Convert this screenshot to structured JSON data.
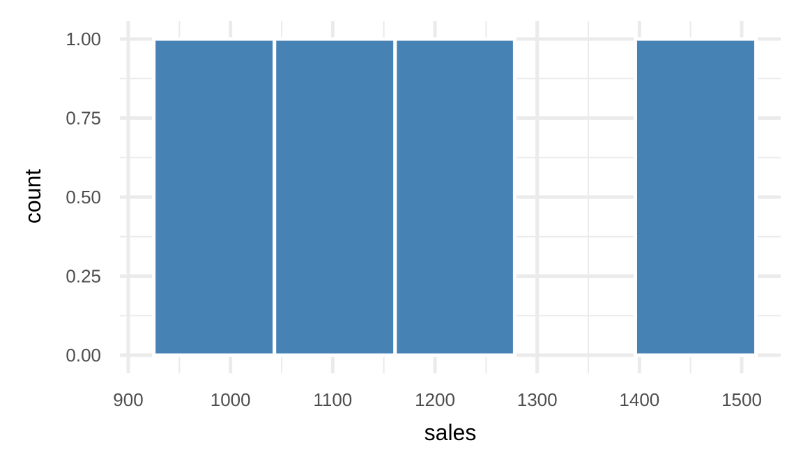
{
  "chart_data": {
    "type": "bar",
    "subtype": "histogram",
    "xlabel": "sales",
    "ylabel": "count",
    "xlim": [
      900,
      1520
    ],
    "ylim": [
      0,
      1.0
    ],
    "x_ticks": [
      900,
      1000,
      1100,
      1200,
      1300,
      1400,
      1500
    ],
    "x_tick_labels": [
      "900",
      "1000",
      "1100",
      "1200",
      "1300",
      "1400",
      "1500"
    ],
    "y_ticks": [
      0,
      0.25,
      0.5,
      0.75,
      1.0
    ],
    "y_tick_labels": [
      "0.00",
      "0.25",
      "0.50",
      "0.75",
      "1.00"
    ],
    "bins": [
      {
        "x_start": 925,
        "x_end": 1043,
        "count": 1
      },
      {
        "x_start": 1043,
        "x_end": 1161,
        "count": 1
      },
      {
        "x_start": 1161,
        "x_end": 1278,
        "count": 1
      },
      {
        "x_start": 1278,
        "x_end": 1396,
        "count": 0
      },
      {
        "x_start": 1396,
        "x_end": 1514,
        "count": 1
      }
    ],
    "bar_color": "#4682b4",
    "bar_outline_color": "#ffffff",
    "grid": true,
    "legend": "none"
  }
}
